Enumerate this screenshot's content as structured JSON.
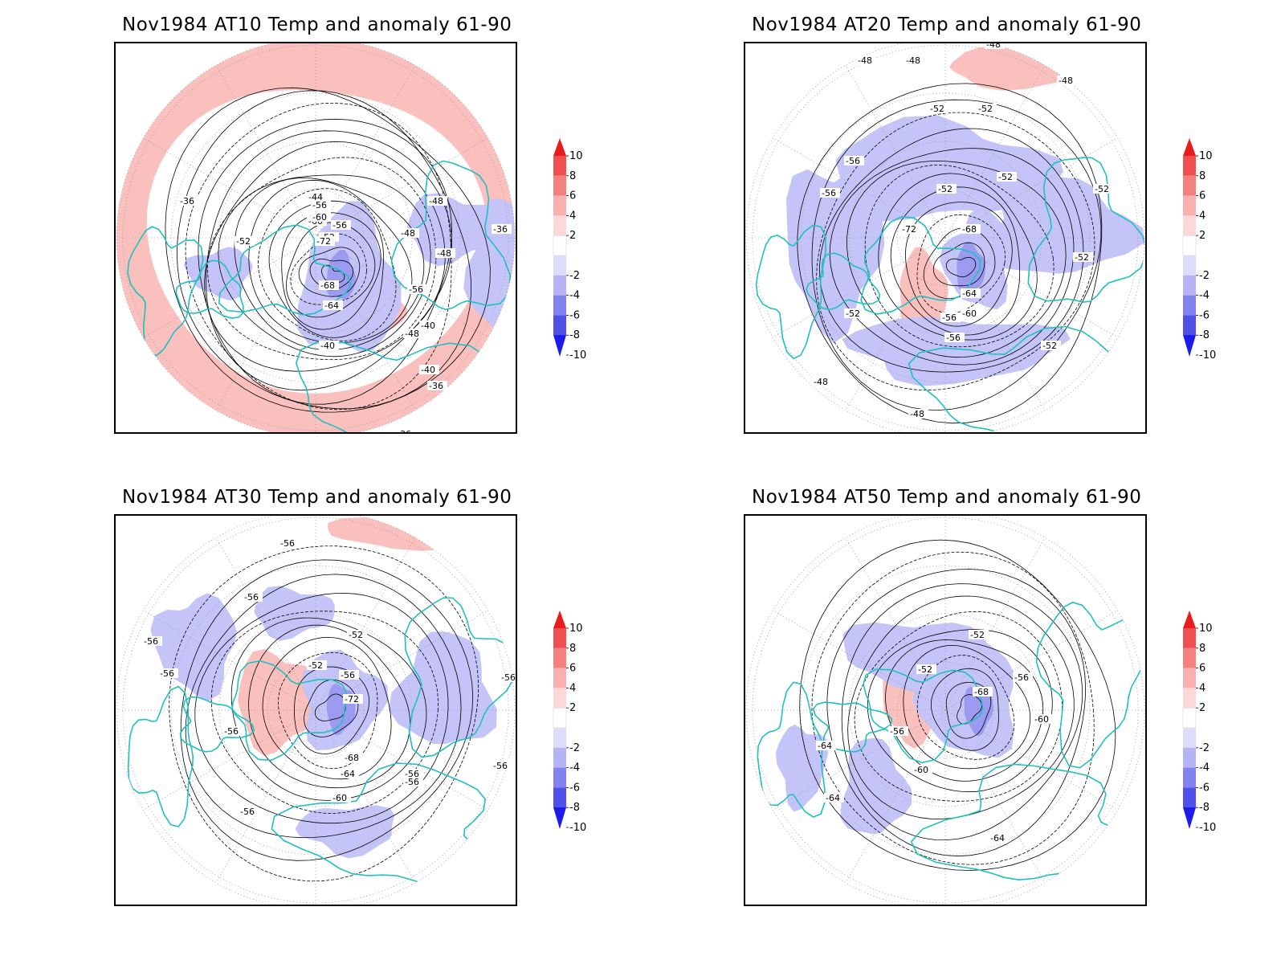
{
  "panels": [
    {
      "title": "Nov1984 AT10 Temp and anomaly 61-90",
      "contour_labels": [
        "-36",
        "-36",
        "-36",
        "-36",
        "-40",
        "-40",
        "-40",
        "-44",
        "-48",
        "-48",
        "-48",
        "-48",
        "-52",
        "-52",
        "-56",
        "-56",
        "-56",
        "-60",
        "-60",
        "-64",
        "-68",
        "-72"
      ]
    },
    {
      "title": "Nov1984 AT20 Temp and anomaly 61-90",
      "contour_labels": [
        "-48",
        "-48",
        "-48",
        "-48",
        "-48",
        "-48",
        "-52",
        "-52",
        "-52",
        "-52",
        "-52",
        "-52",
        "-52",
        "-52",
        "-56",
        "-56",
        "-56",
        "-60",
        "-64",
        "-68",
        "-72",
        "-56"
      ]
    },
    {
      "title": "Nov1984 AT30 Temp and anomaly 61-90",
      "contour_labels": [
        "-56",
        "-56",
        "-56",
        "-56",
        "-56",
        "-56",
        "-56",
        "-56",
        "-56",
        "-56",
        "-52",
        "-52",
        "-56",
        "-60",
        "-64",
        "-68",
        "-72"
      ]
    },
    {
      "title": "Nov1984 AT50 Temp and anomaly 61-90",
      "contour_labels": [
        "-52",
        "-52",
        "-56",
        "-56",
        "-60",
        "-60",
        "-64",
        "-64",
        "-64",
        "-68"
      ]
    }
  ],
  "colorbar": {
    "labels": [
      "10",
      "8",
      "6",
      "4",
      "2",
      "-2",
      "-4",
      "-6",
      "-8",
      "-10"
    ],
    "colors": [
      "#e81c1c",
      "#f0504f",
      "#f5807e",
      "#f9b0ae",
      "#fdd8d6",
      "#ffffff",
      "#dcdcfc",
      "#b4b4f6",
      "#8282f0",
      "#5050ea",
      "#1c1cea"
    ]
  },
  "colors": {
    "coastline": "#20c0c0",
    "warm_anomaly": "#f9c0be",
    "cold_anomaly": "#c4c4f8",
    "contour": "#000000",
    "grid": "#999999"
  }
}
